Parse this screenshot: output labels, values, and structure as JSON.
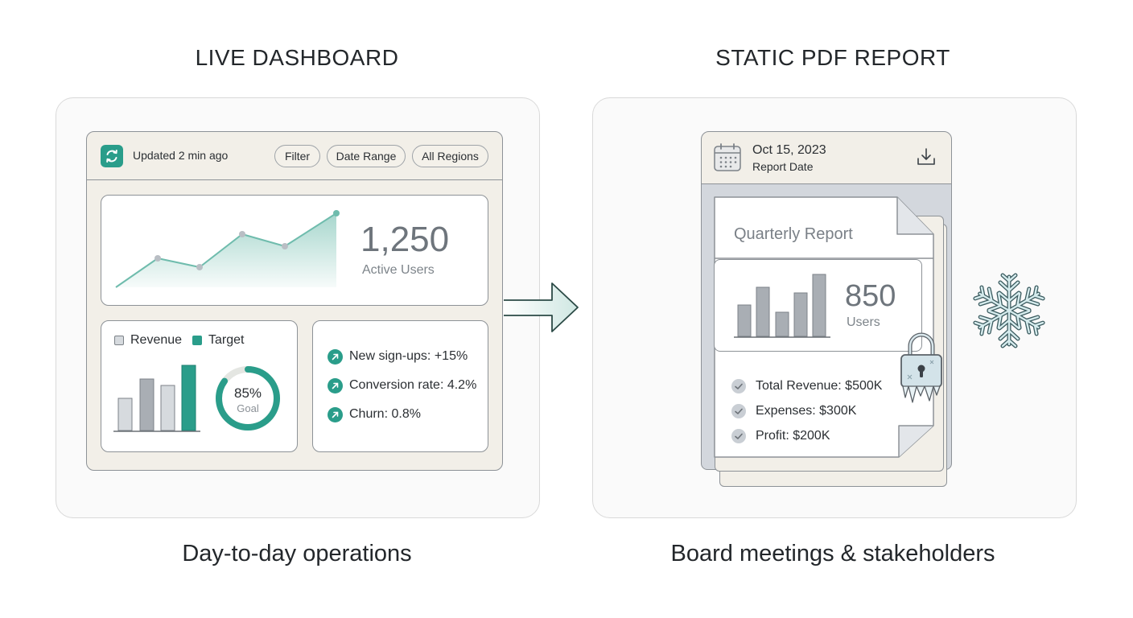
{
  "left": {
    "heading": "LIVE DASHBOARD",
    "caption": "Day-to-day operations",
    "topbar": {
      "updated": "Updated 2 min ago",
      "filters": [
        "Filter",
        "Date Range",
        "All Regions"
      ]
    },
    "metric": {
      "value": "1,250",
      "label": "Active Users"
    },
    "legend": {
      "revenue": "Revenue",
      "target": "Target"
    },
    "gauge": {
      "value": "85%",
      "label": "Goal",
      "fraction": 0.85
    },
    "kpis": [
      "New sign-ups: +15%",
      "Conversion rate: 4.2%",
      "Churn: 0.8%"
    ]
  },
  "right": {
    "heading": "STATIC PDF REPORT",
    "caption": "Board meetings & stakeholders",
    "date": "Oct 15, 2023",
    "date_label": "Report Date",
    "doc_title": "Quarterly Report",
    "metric": {
      "value": "850",
      "label": "Users"
    },
    "items": [
      "Total Revenue: $500K",
      "Expenses: $300K",
      "Profit: $200K"
    ]
  },
  "colors": {
    "accent": "#2a9d8a",
    "gray_bar": "#a9aeb4",
    "light_bar": "#ccd1d7",
    "panel_bg": "#f2efe8"
  },
  "icons": [
    "refresh-icon",
    "trend-up-icon",
    "calendar-icon",
    "download-icon",
    "check-icon",
    "padlock-icon",
    "snowflake-icon",
    "arrow-right-icon"
  ]
}
